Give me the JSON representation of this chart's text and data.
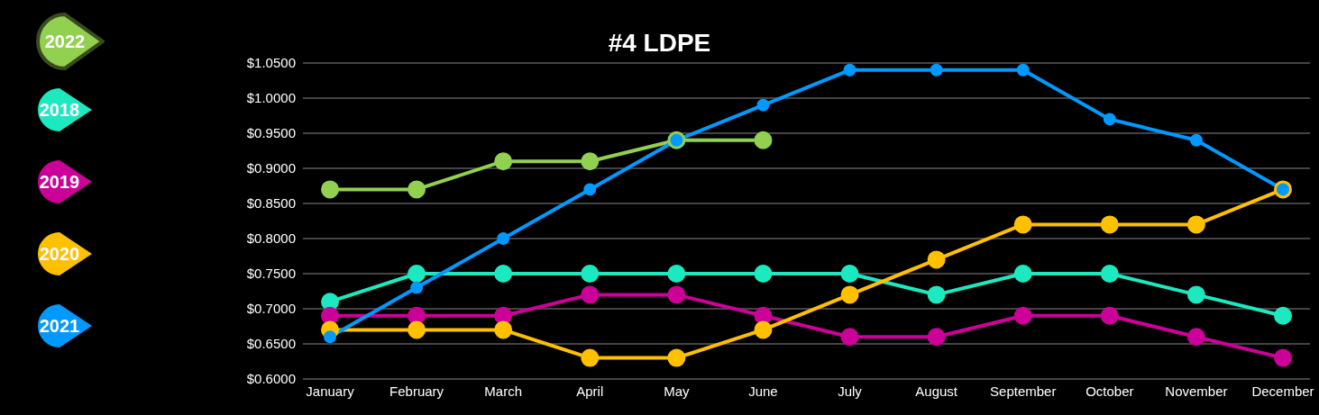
{
  "chart_data": {
    "type": "line",
    "title": "#4 LDPE",
    "categories": [
      "January",
      "February",
      "March",
      "April",
      "May",
      "June",
      "July",
      "August",
      "September",
      "October",
      "November",
      "December"
    ],
    "series": [
      {
        "name": "2022",
        "color": "#92d050",
        "values": [
          0.87,
          0.87,
          0.91,
          0.91,
          0.94,
          0.94,
          null,
          null,
          null,
          null,
          null,
          null
        ]
      },
      {
        "name": "2018",
        "color": "#1de9c0",
        "values": [
          0.71,
          0.75,
          0.75,
          0.75,
          0.75,
          0.75,
          0.75,
          0.72,
          0.75,
          0.75,
          0.72,
          0.69
        ]
      },
      {
        "name": "2019",
        "color": "#cc0099",
        "values": [
          0.69,
          0.69,
          0.69,
          0.72,
          0.72,
          0.69,
          0.66,
          0.66,
          0.69,
          0.69,
          0.66,
          0.63
        ]
      },
      {
        "name": "2020",
        "color": "#ffc000",
        "values": [
          0.67,
          0.67,
          0.67,
          0.63,
          0.63,
          0.67,
          0.72,
          0.77,
          0.82,
          0.82,
          0.82,
          0.87
        ]
      },
      {
        "name": "2021",
        "color": "#0099ff",
        "values": [
          0.66,
          0.73,
          0.8,
          0.87,
          0.94,
          0.99,
          1.04,
          1.04,
          1.04,
          0.97,
          0.94,
          0.87
        ]
      }
    ],
    "ylim": [
      0.6,
      1.05
    ],
    "yticks": [
      {
        "value": 0.6,
        "label": "$0.6000"
      },
      {
        "value": 0.65,
        "label": "$0.6500"
      },
      {
        "value": 0.7,
        "label": "$0.7000"
      },
      {
        "value": 0.75,
        "label": "$0.7500"
      },
      {
        "value": 0.8,
        "label": "$0.8000"
      },
      {
        "value": 0.85,
        "label": "$0.8500"
      },
      {
        "value": 0.9,
        "label": "$0.9000"
      },
      {
        "value": 0.95,
        "label": "$0.9500"
      },
      {
        "value": 1.0,
        "label": "$1.0000"
      },
      {
        "value": 1.05,
        "label": "$1.0500"
      }
    ],
    "grid": "y",
    "legend": "left",
    "marker": "circle",
    "line_style": "solid"
  }
}
